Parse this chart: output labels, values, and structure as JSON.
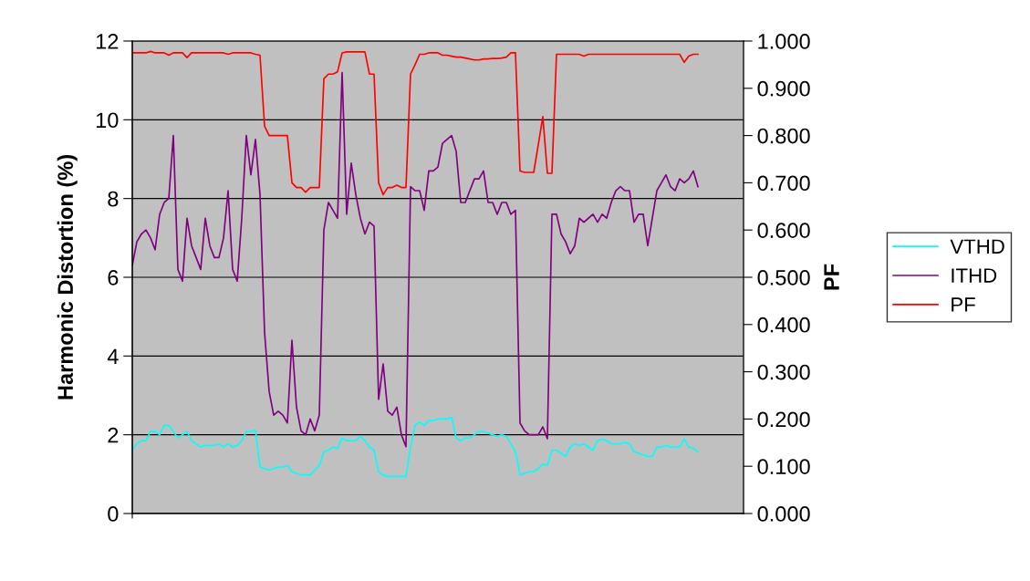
{
  "chart_data": {
    "type": "line",
    "ylabel": "Harmonic Distortion (%)",
    "y2label": "PF",
    "categories": [
      null,
      null,
      null,
      null,
      null,
      null,
      null,
      null,
      null,
      null,
      null,
      null,
      null,
      null,
      null,
      null,
      null,
      null,
      null,
      null,
      null,
      null,
      null,
      null,
      null,
      null,
      null,
      null,
      null,
      null,
      null,
      null,
      null,
      null,
      null,
      null,
      null,
      null,
      null,
      null,
      null,
      null,
      null,
      null,
      null,
      null,
      null,
      null,
      null,
      null,
      null,
      null,
      null,
      null,
      null,
      null,
      null,
      null,
      null,
      null,
      null,
      null,
      null,
      null,
      null,
      null,
      null,
      null,
      null,
      null,
      null,
      null,
      null,
      null,
      null,
      null,
      null,
      null,
      null,
      null,
      null,
      null,
      null,
      null,
      null,
      null,
      null,
      null,
      null,
      null,
      null,
      null,
      null,
      null,
      null,
      null,
      null,
      null,
      null,
      null,
      null,
      null,
      null,
      null,
      null,
      null,
      null,
      null,
      null,
      null,
      null,
      null,
      null,
      null,
      null,
      null,
      null,
      null,
      null,
      null,
      null,
      null,
      null,
      null,
      null,
      null,
      null,
      null,
      null,
      null,
      null,
      null,
      null,
      null,
      null
    ],
    "series": [
      {
        "name": "VTHD",
        "color": "#00ffff",
        "values": [
          1.61,
          1.77,
          1.85,
          1.85,
          2.08,
          2.08,
          2.0,
          2.24,
          2.24,
          2.08,
          1.92,
          2.0,
          2.08,
          1.85,
          1.77,
          1.69,
          1.73,
          1.73,
          1.73,
          1.77,
          1.69,
          1.77,
          1.69,
          1.73,
          1.85,
          2.08,
          2.08,
          2.12,
          1.18,
          1.14,
          1.1,
          1.14,
          1.18,
          1.18,
          1.22,
          1.06,
          1.02,
          0.98,
          0.98,
          0.98,
          1.1,
          1.22,
          1.57,
          1.61,
          1.69,
          1.65,
          1.92,
          1.85,
          1.85,
          1.85,
          1.96,
          1.85,
          1.69,
          1.61,
          1.06,
          0.98,
          0.94,
          0.94,
          0.94,
          0.94,
          0.94,
          1.69,
          2.24,
          2.32,
          2.24,
          2.36,
          2.36,
          2.4,
          2.4,
          2.4,
          2.44,
          1.92,
          1.85,
          1.92,
          1.92,
          2.0,
          2.08,
          2.08,
          2.04,
          2.0,
          1.96,
          2.0,
          1.96,
          1.77,
          1.57,
          0.98,
          1.02,
          1.06,
          1.06,
          1.14,
          1.26,
          1.22,
          1.61,
          1.61,
          1.53,
          1.45,
          1.69,
          1.77,
          1.73,
          1.77,
          1.69,
          1.61,
          1.85,
          1.89,
          1.85,
          1.77,
          1.77,
          1.77,
          1.81,
          1.77,
          1.57,
          1.53,
          1.49,
          1.45,
          1.45,
          1.69,
          1.69,
          1.73,
          1.69,
          1.69,
          1.69,
          1.89,
          1.69,
          1.65,
          1.57,
          null,
          null,
          null,
          null,
          null,
          null,
          null,
          null,
          null,
          null
        ]
      },
      {
        "name": "ITHD",
        "color": "#800080",
        "values": [
          6.3,
          6.9,
          7.1,
          7.2,
          7.0,
          6.7,
          7.6,
          7.9,
          8.0,
          9.6,
          6.2,
          5.9,
          7.5,
          6.8,
          6.5,
          6.2,
          7.5,
          6.8,
          6.5,
          6.5,
          7.0,
          8.2,
          6.2,
          5.9,
          7.5,
          9.6,
          8.6,
          9.5,
          8.1,
          4.6,
          3.1,
          2.5,
          2.6,
          2.5,
          2.3,
          4.4,
          2.7,
          2.1,
          2.0,
          2.4,
          2.1,
          2.5,
          7.2,
          7.9,
          7.7,
          7.5,
          11.2,
          7.6,
          8.9,
          8.1,
          7.5,
          7.1,
          7.4,
          7.3,
          2.9,
          3.8,
          2.6,
          2.5,
          2.7,
          2.0,
          1.7,
          8.3,
          8.2,
          8.2,
          7.7,
          8.7,
          8.7,
          8.8,
          9.4,
          9.5,
          9.6,
          9.2,
          7.9,
          7.9,
          8.2,
          8.5,
          8.5,
          8.7,
          7.9,
          7.9,
          7.6,
          7.9,
          7.9,
          7.6,
          7.7,
          2.3,
          2.1,
          2.0,
          2.0,
          2.0,
          2.2,
          1.9,
          7.6,
          7.6,
          7.1,
          6.9,
          6.6,
          6.8,
          7.5,
          7.4,
          7.5,
          7.6,
          7.4,
          7.6,
          7.5,
          7.9,
          8.2,
          8.3,
          8.2,
          8.2,
          7.4,
          7.6,
          7.6,
          6.8,
          7.5,
          8.2,
          8.4,
          8.6,
          8.3,
          8.2,
          8.5,
          8.4,
          8.5,
          8.7,
          8.3,
          null,
          null,
          null,
          null,
          null,
          null,
          null,
          null,
          null,
          null
        ]
      },
      {
        "name": "PF",
        "color": "#ff0000",
        "axis": "y2",
        "values": [
          0.975,
          0.975,
          0.975,
          0.975,
          0.978,
          0.975,
          0.975,
          0.975,
          0.97,
          0.975,
          0.975,
          0.975,
          0.965,
          0.975,
          0.975,
          0.975,
          0.975,
          0.975,
          0.975,
          0.975,
          0.975,
          0.972,
          0.975,
          0.975,
          0.975,
          0.975,
          0.975,
          0.972,
          0.97,
          0.82,
          0.8,
          0.8,
          0.8,
          0.8,
          0.8,
          0.7,
          0.69,
          0.69,
          0.68,
          0.69,
          0.69,
          0.69,
          0.92,
          0.93,
          0.93,
          0.935,
          0.975,
          0.977,
          0.977,
          0.977,
          0.977,
          0.977,
          0.93,
          0.93,
          0.7,
          0.675,
          0.69,
          0.69,
          0.695,
          0.69,
          0.69,
          0.93,
          0.95,
          0.972,
          0.972,
          0.975,
          0.975,
          0.975,
          0.97,
          0.97,
          0.968,
          0.966,
          0.966,
          0.964,
          0.962,
          0.96,
          0.96,
          0.962,
          0.962,
          0.963,
          0.963,
          0.964,
          0.966,
          0.975,
          0.975,
          0.725,
          0.722,
          0.722,
          0.722,
          0.78,
          0.84,
          0.72,
          0.72,
          0.972,
          0.972,
          0.972,
          0.972,
          0.972,
          0.972,
          0.968,
          0.972,
          0.972,
          0.972,
          0.972,
          0.972,
          0.972,
          0.972,
          0.972,
          0.972,
          0.972,
          0.972,
          0.972,
          0.972,
          0.972,
          0.972,
          0.972,
          0.972,
          0.972,
          0.972,
          0.972,
          0.972,
          0.955,
          0.968,
          0.972,
          0.972,
          null,
          null,
          null,
          null,
          null,
          null,
          null,
          null,
          null,
          null
        ]
      }
    ],
    "ylim": [
      0,
      12
    ],
    "yticks": [
      0,
      2,
      4,
      6,
      8,
      10,
      12
    ],
    "y2lim": [
      0,
      1
    ],
    "y2ticks": [
      {
        "value": 0,
        "label": "0.000"
      },
      {
        "value": 0.1,
        "label": "0.100"
      },
      {
        "value": 0.2,
        "label": "0.200"
      },
      {
        "value": 0.3,
        "label": "0.300"
      },
      {
        "value": 0.4,
        "label": "0.400"
      },
      {
        "value": 0.5,
        "label": "0.500"
      },
      {
        "value": 0.6,
        "label": "0.600"
      },
      {
        "value": 0.7,
        "label": "0.700"
      },
      {
        "value": 0.8,
        "label": "0.800"
      },
      {
        "value": 0.9,
        "label": "0.900"
      },
      {
        "value": 1,
        "label": "1.000"
      }
    ],
    "grid": "y",
    "legend": "right",
    "marker": "none",
    "line_style": "solid"
  }
}
